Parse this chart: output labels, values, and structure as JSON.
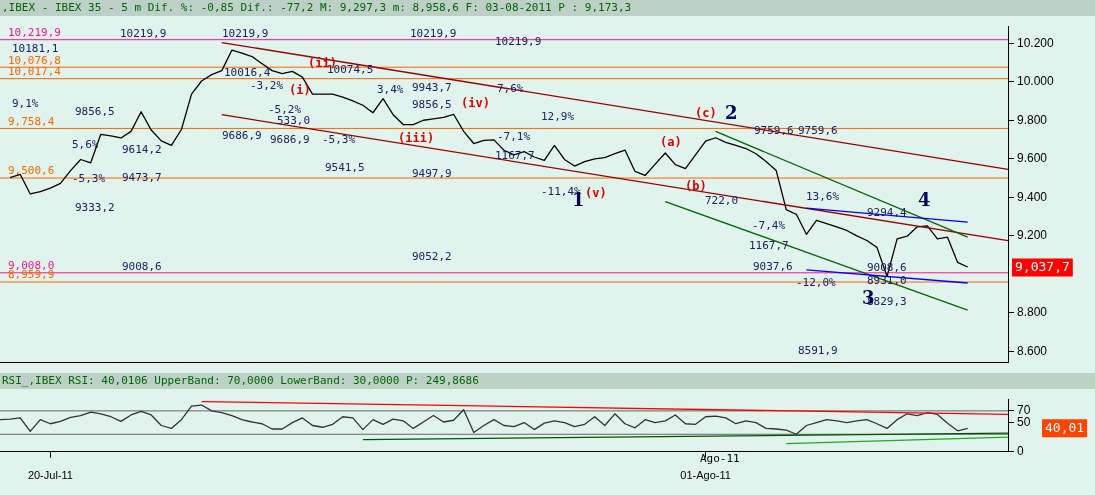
{
  "chart_data": [
    {
      "type": "line",
      "title": ",IBEX - IBEX 35 -  5 m Dif. %: -0,85 Dif.: -77,2 M: 9,297,3 m: 8,958,6 F: 03-08-2011 P : 9,173,3",
      "categories": [
        null,
        null,
        null,
        null,
        null,
        null,
        null,
        null,
        null,
        null,
        null,
        null,
        null,
        null,
        null,
        null,
        null,
        null,
        null,
        null,
        null,
        null,
        null,
        null,
        null,
        null,
        null,
        null,
        null,
        null,
        null,
        null,
        null,
        null,
        null,
        null,
        null,
        null,
        null,
        null,
        null,
        null,
        null,
        null,
        null,
        null,
        null,
        null,
        null,
        null,
        null,
        null,
        null,
        null,
        null,
        null,
        null,
        null,
        null,
        null,
        null,
        null,
        null,
        null,
        null,
        null,
        null,
        null,
        null,
        null,
        null,
        null,
        null,
        null,
        null,
        null,
        null,
        null,
        null,
        null,
        null,
        null,
        null,
        null,
        null,
        null,
        null,
        null,
        null,
        null,
        null,
        null,
        null,
        null,
        null,
        null,
        null,
        null,
        null,
        null,
        null
      ],
      "ylim": [
        8540,
        10290
      ],
      "yticks": [
        {
          "value": 8600,
          "label": "8.600"
        },
        {
          "value": 8800,
          "label": "8.800"
        },
        {
          "value": 9200,
          "label": "9.200"
        },
        {
          "value": 9400,
          "label": "9.400"
        },
        {
          "value": 9600,
          "label": "9.600"
        },
        {
          "value": 9800,
          "label": "9.800"
        },
        {
          "value": 10000,
          "label": "10.000"
        },
        {
          "value": 10200,
          "label": "10.200"
        }
      ],
      "tick_labels": "y",
      "grid": false,
      "legend": false,
      "marker": "none",
      "series": [
        {
          "color": "#000000",
          "values": [
            null,
            9503,
            9520,
            9418,
            9430,
            9448,
            9473,
            9539,
            9597,
            9580,
            9728,
            9720,
            9709,
            9743,
            9845,
            9750,
            9694,
            9670,
            9753,
            9937,
            10005,
            10038,
            10059,
            10165,
            10150,
            10132,
            10095,
            10059,
            10043,
            10055,
            10025,
            9937,
            9937,
            9937,
            9921,
            9902,
            9879,
            9840,
            9913,
            9830,
            9779,
            9778,
            9801,
            9808,
            9816,
            9832,
            9743,
            9680,
            9696,
            9699,
            9645,
            9621,
            9638,
            9610,
            9592,
            9670,
            9597,
            9563,
            9586,
            9600,
            9607,
            9627,
            9646,
            9535,
            9514,
            9573,
            9631,
            9570,
            9550,
            9621,
            9692,
            9710,
            9686,
            9670,
            9654,
            9627,
            9587,
            9540,
            9336,
            9312,
            9208,
            9281,
            9264,
            9247,
            9228,
            9200,
            9176,
            9140,
            8989,
            9184,
            9198,
            9247,
            9252,
            9184,
            9193,
            9062,
            9038,
            null,
            null,
            null,
            null
          ]
        },
        {
          "color": "#990000",
          "values": [
            null,
            null,
            null,
            null,
            null,
            null,
            null,
            null,
            null,
            null,
            null,
            null,
            null,
            null,
            null,
            null,
            null,
            null,
            null,
            null,
            null,
            null,
            10205,
            null,
            null,
            null,
            null,
            null,
            null,
            null,
            null,
            null,
            null,
            null,
            null,
            null,
            null,
            null,
            null,
            null,
            null,
            null,
            null,
            null,
            null,
            null,
            null,
            null,
            null,
            null,
            null,
            null,
            null,
            null,
            null,
            null,
            null,
            null,
            null,
            null,
            null,
            null,
            null,
            null,
            null,
            null,
            null,
            null,
            null,
            null,
            null,
            null,
            null,
            null,
            null,
            null,
            null,
            null,
            null,
            null,
            null,
            null,
            null,
            null,
            null,
            null,
            null,
            null,
            null,
            null,
            null,
            null,
            null,
            null,
            null,
            null,
            null,
            null,
            null,
            null,
            9546
          ]
        },
        {
          "color": "#990000",
          "values": [
            null,
            null,
            null,
            null,
            null,
            null,
            null,
            null,
            null,
            null,
            null,
            null,
            null,
            null,
            null,
            null,
            null,
            null,
            null,
            null,
            null,
            null,
            9830,
            null,
            null,
            null,
            null,
            null,
            null,
            null,
            null,
            null,
            null,
            null,
            null,
            null,
            null,
            null,
            null,
            null,
            null,
            null,
            null,
            null,
            null,
            null,
            null,
            null,
            null,
            null,
            null,
            null,
            null,
            null,
            null,
            null,
            null,
            null,
            null,
            null,
            null,
            null,
            null,
            null,
            null,
            null,
            null,
            null,
            null,
            null,
            null,
            null,
            null,
            null,
            null,
            null,
            null,
            null,
            null,
            null,
            null,
            null,
            null,
            null,
            null,
            null,
            null,
            null,
            null,
            null,
            null,
            null,
            null,
            null,
            null,
            null,
            null,
            null,
            null,
            null,
            9175
          ]
        },
        {
          "color": "#006600",
          "values": [
            null,
            null,
            null,
            null,
            null,
            null,
            null,
            null,
            null,
            null,
            null,
            null,
            null,
            null,
            null,
            null,
            null,
            null,
            null,
            null,
            null,
            null,
            null,
            null,
            null,
            null,
            null,
            null,
            null,
            null,
            null,
            null,
            null,
            null,
            null,
            null,
            null,
            null,
            null,
            null,
            null,
            null,
            null,
            null,
            null,
            null,
            null,
            null,
            null,
            null,
            null,
            null,
            null,
            null,
            null,
            null,
            null,
            null,
            null,
            null,
            null,
            null,
            null,
            null,
            null,
            null,
            null,
            null,
            null,
            null,
            null,
            9743,
            null,
            null,
            null,
            null,
            null,
            null,
            null,
            null,
            null,
            null,
            null,
            null,
            null,
            null,
            null,
            null,
            null,
            null,
            null,
            null,
            null,
            null,
            null,
            null,
            9193,
            null,
            null,
            null,
            null
          ]
        },
        {
          "color": "#006600",
          "values": [
            null,
            null,
            null,
            null,
            null,
            null,
            null,
            null,
            null,
            null,
            null,
            null,
            null,
            null,
            null,
            null,
            null,
            null,
            null,
            null,
            null,
            null,
            null,
            null,
            null,
            null,
            null,
            null,
            null,
            null,
            null,
            null,
            null,
            null,
            null,
            null,
            null,
            null,
            null,
            null,
            null,
            null,
            null,
            null,
            null,
            null,
            null,
            null,
            null,
            null,
            null,
            null,
            null,
            null,
            null,
            null,
            null,
            null,
            null,
            null,
            null,
            null,
            null,
            null,
            null,
            null,
            9378,
            null,
            null,
            null,
            null,
            null,
            null,
            null,
            null,
            null,
            null,
            null,
            null,
            null,
            null,
            null,
            null,
            null,
            null,
            null,
            null,
            null,
            null,
            null,
            null,
            null,
            null,
            null,
            null,
            null,
            8814,
            null,
            null,
            null,
            null
          ]
        },
        {
          "color": "#0000ff",
          "values": [
            null,
            null,
            null,
            null,
            null,
            null,
            null,
            null,
            null,
            null,
            null,
            null,
            null,
            null,
            null,
            null,
            null,
            null,
            null,
            null,
            null,
            null,
            null,
            null,
            null,
            null,
            null,
            null,
            null,
            null,
            null,
            null,
            null,
            null,
            null,
            null,
            null,
            null,
            null,
            null,
            null,
            null,
            null,
            null,
            null,
            null,
            null,
            null,
            null,
            null,
            null,
            null,
            null,
            null,
            null,
            null,
            null,
            null,
            null,
            null,
            null,
            null,
            null,
            null,
            null,
            null,
            null,
            null,
            null,
            null,
            null,
            null,
            null,
            null,
            null,
            null,
            null,
            null,
            null,
            null,
            9344,
            null,
            null,
            null,
            null,
            null,
            null,
            null,
            null,
            null,
            null,
            null,
            null,
            null,
            null,
            null,
            9271,
            null,
            null,
            null,
            null
          ]
        },
        {
          "color": "#0000ff",
          "values": [
            null,
            null,
            null,
            null,
            null,
            null,
            null,
            null,
            null,
            null,
            null,
            null,
            null,
            null,
            null,
            null,
            null,
            null,
            null,
            null,
            null,
            null,
            null,
            null,
            null,
            null,
            null,
            null,
            null,
            null,
            null,
            null,
            null,
            null,
            null,
            null,
            null,
            null,
            null,
            null,
            null,
            null,
            null,
            null,
            null,
            null,
            null,
            null,
            null,
            null,
            null,
            null,
            null,
            null,
            null,
            null,
            null,
            null,
            null,
            null,
            null,
            null,
            null,
            null,
            null,
            null,
            null,
            null,
            null,
            null,
            null,
            null,
            null,
            null,
            null,
            null,
            null,
            null,
            null,
            null,
            9023,
            null,
            null,
            null,
            null,
            null,
            null,
            null,
            null,
            null,
            null,
            null,
            null,
            null,
            null,
            null,
            8955,
            null,
            null,
            null,
            null
          ]
        }
      ],
      "ref_lines": [
        {
          "axis": "y",
          "value": 10219.9,
          "label": "10,219,9",
          "color": "#ff1493"
        },
        {
          "axis": "y",
          "value": 10076.8,
          "label": "10,076,8",
          "color": "#ff6600"
        },
        {
          "axis": "y",
          "value": 10017.4,
          "label": "10,017,4",
          "color": "#ff6600"
        },
        {
          "axis": "y",
          "value": 9758.4,
          "label": "9,758,4",
          "color": "#ff6600"
        },
        {
          "axis": "y",
          "value": 9500.6,
          "label": "9,500,6",
          "color": "#ff6600"
        },
        {
          "axis": "y",
          "value": 9008.0,
          "label": "9,008,0",
          "color": "#ff1493"
        },
        {
          "axis": "y",
          "value": 8959.9,
          "label": "8,959,9",
          "color": "#ff6600"
        }
      ],
      "annotations": [
        "10219,9",
        "10219,9",
        "10219,9",
        "10219,9",
        "10181,1",
        "9,1%",
        "9856,5",
        "5,6%",
        "-5,3%",
        "9333,2",
        "9614,2",
        "9473,7",
        "9008,6",
        "10016,4",
        "-3,2%",
        "-5,2%",
        "533,0",
        "9686,9",
        "9686,9",
        "9541,5",
        "10074,5",
        "-5,3%",
        "3,4%",
        "9943,7",
        "9856,5",
        "9497,9",
        "9052,2",
        "7,6%",
        "12,9%",
        "-7,1%",
        "1167,7",
        "-11,4%",
        "8591,9",
        "9759,6",
        "9759,6",
        "722,0",
        "-7,4%",
        "1167,7",
        "9037,6",
        "13,6%",
        "-12,0%",
        "9294,4",
        "9008,6",
        "8931,0",
        "8829,3",
        "(i)",
        "(ii)",
        "(iii)",
        "(iv)",
        "(v)",
        "(a)",
        "(b)",
        "(c)",
        "1",
        "2",
        "3",
        "4",
        "9,037,7"
      ]
    },
    {
      "type": "line",
      "title": "RSI_,IBEX RSI: 40,0106 UpperBand: 70,0000 LowerBand: 30,0000 P: 249,8686",
      "categories": [
        null,
        null,
        null,
        null,
        null,
        "20-Jul-11",
        null,
        null,
        null,
        null,
        null,
        null,
        null,
        null,
        null,
        null,
        null,
        null,
        null,
        null,
        null,
        null,
        null,
        null,
        null,
        null,
        null,
        null,
        null,
        null,
        null,
        null,
        null,
        null,
        null,
        null,
        null,
        null,
        null,
        null,
        null,
        null,
        null,
        null,
        null,
        null,
        null,
        null,
        null,
        null,
        null,
        null,
        null,
        null,
        null,
        null,
        null,
        null,
        null,
        null,
        null,
        null,
        null,
        null,
        null,
        null,
        null,
        null,
        null,
        null,
        "01-Ago-11",
        null,
        null,
        null,
        null,
        null,
        null,
        null,
        null,
        null,
        null,
        null,
        null,
        null,
        null,
        null,
        null,
        null,
        null,
        null,
        null,
        null,
        null,
        null,
        null,
        null,
        null,
        null,
        null,
        null,
        null
      ],
      "ylim": [
        0,
        90
      ],
      "yticks": [
        0,
        50,
        70
      ],
      "grid": false,
      "legend": false,
      "marker": "none",
      "series": [
        {
          "color": "#333333",
          "values": [
            55,
            56,
            58,
            35,
            55,
            48,
            52,
            59,
            62,
            68,
            65,
            60,
            52,
            63,
            69,
            63,
            45,
            40,
            55,
            78,
            80,
            70,
            67,
            62,
            55,
            51,
            48,
            39,
            39,
            50,
            58,
            45,
            42,
            47,
            60,
            58,
            38,
            55,
            47,
            56,
            53,
            40,
            51,
            62,
            51,
            54,
            72,
            33,
            45,
            55,
            45,
            43,
            50,
            38,
            49,
            53,
            50,
            43,
            47,
            60,
            45,
            65,
            48,
            41,
            55,
            50,
            53,
            63,
            48,
            47,
            60,
            61,
            58,
            48,
            53,
            50,
            40,
            39,
            37,
            30,
            45,
            50,
            55,
            53,
            50,
            53,
            55,
            48,
            40,
            55,
            65,
            62,
            67,
            64,
            49,
            36,
            40,
            null,
            null,
            null,
            null
          ]
        },
        {
          "color": "#ff0000",
          "values": [
            null,
            null,
            null,
            null,
            null,
            null,
            null,
            null,
            null,
            null,
            null,
            null,
            null,
            null,
            null,
            null,
            null,
            null,
            null,
            null,
            86,
            null,
            null,
            null,
            null,
            null,
            null,
            null,
            null,
            null,
            null,
            null,
            null,
            null,
            null,
            null,
            null,
            null,
            null,
            null,
            null,
            null,
            null,
            null,
            null,
            null,
            null,
            null,
            null,
            null,
            null,
            null,
            null,
            null,
            null,
            null,
            null,
            null,
            null,
            null,
            null,
            null,
            null,
            null,
            null,
            null,
            null,
            null,
            null,
            null,
            null,
            null,
            null,
            null,
            null,
            null,
            null,
            null,
            null,
            null,
            null,
            null,
            null,
            null,
            null,
            null,
            null,
            null,
            null,
            null,
            null,
            null,
            null,
            null,
            null,
            null,
            null,
            null,
            null,
            null,
            64
          ]
        },
        {
          "color": "#005500",
          "values": [
            null,
            null,
            null,
            null,
            null,
            null,
            null,
            null,
            null,
            null,
            null,
            null,
            null,
            null,
            null,
            null,
            null,
            null,
            null,
            null,
            null,
            null,
            null,
            null,
            null,
            null,
            null,
            null,
            null,
            null,
            null,
            null,
            null,
            null,
            null,
            null,
            21,
            null,
            null,
            null,
            null,
            null,
            null,
            null,
            null,
            null,
            null,
            null,
            null,
            null,
            null,
            null,
            null,
            null,
            null,
            null,
            null,
            null,
            null,
            null,
            null,
            null,
            null,
            null,
            null,
            null,
            null,
            null,
            null,
            null,
            null,
            null,
            null,
            null,
            null,
            null,
            null,
            null,
            null,
            null,
            null,
            null,
            null,
            null,
            null,
            null,
            null,
            null,
            null,
            null,
            null,
            null,
            null,
            null,
            null,
            null,
            null,
            null,
            null,
            null,
            32
          ]
        },
        {
          "color": "#22aa22",
          "values": [
            null,
            null,
            null,
            null,
            null,
            null,
            null,
            null,
            null,
            null,
            null,
            null,
            null,
            null,
            null,
            null,
            null,
            null,
            null,
            null,
            null,
            null,
            null,
            null,
            null,
            null,
            null,
            null,
            null,
            null,
            null,
            null,
            null,
            null,
            null,
            null,
            null,
            null,
            null,
            null,
            null,
            null,
            null,
            null,
            null,
            null,
            null,
            null,
            null,
            null,
            null,
            null,
            null,
            null,
            null,
            null,
            null,
            null,
            null,
            null,
            null,
            null,
            null,
            null,
            null,
            null,
            null,
            null,
            null,
            null,
            null,
            null,
            null,
            null,
            null,
            null,
            null,
            null,
            14,
            null,
            null,
            null,
            null,
            null,
            null,
            null,
            null,
            null,
            null,
            null,
            null,
            null,
            null,
            null,
            null,
            null,
            null,
            null,
            null,
            null,
            25
          ]
        }
      ],
      "ref_lines": [
        {
          "axis": "y",
          "value": 70,
          "color": "#666666"
        },
        {
          "axis": "y",
          "value": 30,
          "color": "#666666"
        }
      ],
      "annotations": [
        "Ago-11",
        "40,01"
      ]
    }
  ]
}
